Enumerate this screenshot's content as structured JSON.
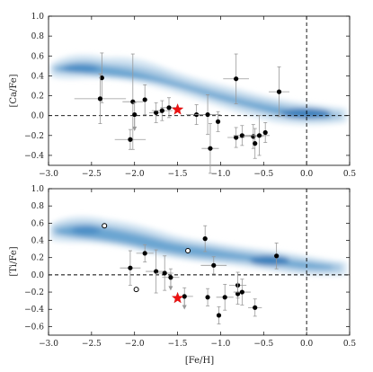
{
  "chart_data": [
    {
      "type": "scatter",
      "panel": "top",
      "ylabel": "[Ca/Fe]",
      "xlabel": "",
      "xlim": [
        -3.0,
        0.5
      ],
      "ylim": [
        -0.5,
        1.0
      ],
      "xticks": [
        "−3.0",
        "−2.5",
        "−2.0",
        "−1.5",
        "−1.0",
        "−0.5",
        "0.0",
        "0.5"
      ],
      "yticks": [
        "−0.4",
        "−0.2",
        "0.0",
        "0.2",
        "0.4",
        "0.6",
        "0.8",
        "1.0"
      ],
      "ref_lines": {
        "y": 0.0,
        "x": 0.0
      },
      "background_density": "blue filled contours tracing the comparison-star trend",
      "colors": {
        "points": "#000000",
        "errorbars": "#999999",
        "highlight": "#ee1111"
      },
      "series": [
        {
          "marker": "filled-circle",
          "points": [
            {
              "x": -2.38,
              "y": 0.38,
              "ex": 0.0,
              "ey": 0.25
            },
            {
              "x": -2.4,
              "y": 0.17,
              "ex": 0.3,
              "ey": 0.25
            },
            {
              "x": -2.02,
              "y": 0.14,
              "ex": 0.12,
              "ey": 0.48
            },
            {
              "x": -2.0,
              "y": 0.01,
              "ex": 0.0,
              "ey": 0.12,
              "limit": "upper"
            },
            {
              "x": -1.88,
              "y": 0.16,
              "ex": 0.0,
              "ey": 0.15
            },
            {
              "x": -2.05,
              "y": -0.24,
              "ex": 0.18,
              "ey": 0.1
            },
            {
              "x": -1.75,
              "y": 0.03,
              "ex": 0.08,
              "ey": 0.1
            },
            {
              "x": -1.68,
              "y": 0.05,
              "ex": 0.12,
              "ey": 0.1
            },
            {
              "x": -1.6,
              "y": 0.08,
              "ex": 0.1,
              "ey": 0.1
            },
            {
              "x": -1.28,
              "y": 0.01,
              "ex": 0.12,
              "ey": 0.1
            },
            {
              "x": -1.15,
              "y": 0.01,
              "ex": 0.15,
              "ey": 0.2
            },
            {
              "x": -1.12,
              "y": -0.33,
              "ex": 0.1,
              "ey": 0.25
            },
            {
              "x": -1.03,
              "y": -0.06,
              "ex": 0.0,
              "ey": 0.1
            },
            {
              "x": -0.82,
              "y": 0.37,
              "ex": 0.15,
              "ey": 0.25
            },
            {
              "x": -0.82,
              "y": -0.22,
              "ex": 0.1,
              "ey": 0.1
            },
            {
              "x": -0.75,
              "y": -0.2,
              "ex": 0.1,
              "ey": 0.1
            },
            {
              "x": -0.62,
              "y": -0.21,
              "ex": 0.12,
              "ey": 0.12
            },
            {
              "x": -0.6,
              "y": -0.28,
              "ex": 0.0,
              "ey": 0.15
            },
            {
              "x": -0.55,
              "y": -0.2,
              "ex": 0.12,
              "ey": 0.2
            },
            {
              "x": -0.48,
              "y": -0.17,
              "ex": 0.0,
              "ey": 0.1
            },
            {
              "x": -0.32,
              "y": 0.24,
              "ex": 0.12,
              "ey": 0.25
            }
          ]
        },
        {
          "marker": "red-star",
          "points": [
            {
              "x": -1.5,
              "y": 0.06
            }
          ]
        }
      ]
    },
    {
      "type": "scatter",
      "panel": "bottom",
      "ylabel": "[Ti/Fe]",
      "xlabel": "[Fe/H]",
      "xlim": [
        -3.0,
        0.5
      ],
      "ylim": [
        -0.7,
        1.0
      ],
      "xticks": [
        "−3.0",
        "−2.5",
        "−2.0",
        "−1.5",
        "−1.0",
        "−0.5",
        "0.0",
        "0.5"
      ],
      "yticks": [
        "−0.6",
        "−0.4",
        "−0.2",
        "0.0",
        "0.2",
        "0.4",
        "0.6",
        "0.8",
        "1.0"
      ],
      "ref_lines": {
        "y": 0.0,
        "x": 0.0
      },
      "background_density": "blue filled contours tracing the comparison-star trend",
      "colors": {
        "points": "#000000",
        "errorbars": "#999999",
        "highlight": "#ee1111"
      },
      "series": [
        {
          "marker": "filled-circle",
          "points": [
            {
              "x": -2.05,
              "y": 0.08,
              "ex": 0.12,
              "ey": 0.2
            },
            {
              "x": -1.88,
              "y": 0.25,
              "ex": 0.1,
              "ey": 0.1
            },
            {
              "x": -1.75,
              "y": 0.04,
              "ex": 0.12,
              "ey": 0.25
            },
            {
              "x": -1.65,
              "y": 0.02,
              "ex": 0.1,
              "ey": 0.2
            },
            {
              "x": -1.58,
              "y": -0.03,
              "ex": 0.1,
              "ey": 0.1,
              "limit": "upper"
            },
            {
              "x": -1.42,
              "y": -0.25,
              "ex": 0.1,
              "ey": 0.1,
              "limit": "upper"
            },
            {
              "x": -1.18,
              "y": 0.42,
              "ex": 0.0,
              "ey": 0.15
            },
            {
              "x": -1.15,
              "y": -0.26,
              "ex": 0.0,
              "ey": 0.1
            },
            {
              "x": -1.08,
              "y": 0.11,
              "ex": 0.15,
              "ey": 0.1
            },
            {
              "x": -1.02,
              "y": -0.47,
              "ex": 0.0,
              "ey": 0.1
            },
            {
              "x": -0.95,
              "y": -0.26,
              "ex": 0.1,
              "ey": 0.15
            },
            {
              "x": -0.8,
              "y": -0.12,
              "ex": 0.1,
              "ey": 0.15
            },
            {
              "x": -0.8,
              "y": -0.22,
              "ex": 0.0,
              "ey": 0.12
            },
            {
              "x": -0.75,
              "y": -0.2,
              "ex": 0.1,
              "ey": 0.15
            },
            {
              "x": -0.6,
              "y": -0.38,
              "ex": 0.08,
              "ey": 0.1
            },
            {
              "x": -0.35,
              "y": 0.22,
              "ex": 0.0,
              "ey": 0.15
            }
          ]
        },
        {
          "marker": "open-circle",
          "points": [
            {
              "x": -2.35,
              "y": 0.57
            },
            {
              "x": -1.98,
              "y": -0.17
            },
            {
              "x": -1.38,
              "y": 0.28
            }
          ]
        },
        {
          "marker": "red-star",
          "points": [
            {
              "x": -1.5,
              "y": -0.27
            }
          ]
        }
      ]
    }
  ]
}
